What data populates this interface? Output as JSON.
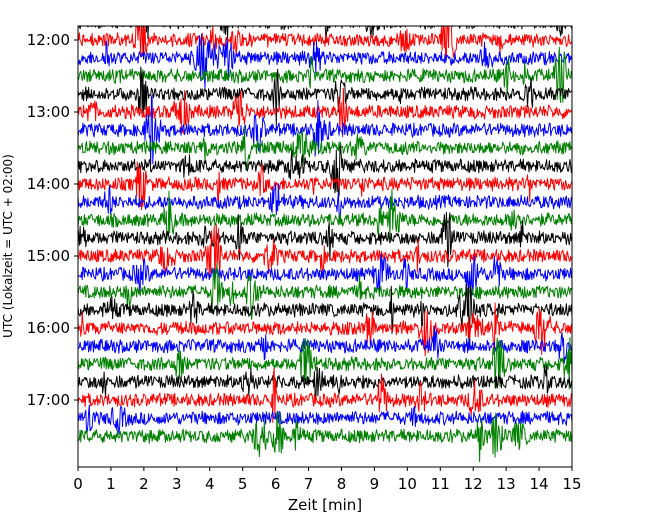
{
  "chart_data": {
    "type": "line",
    "title": "",
    "xlabel": "Zeit  [min]",
    "ylabel": "UTC (Lokalzeit = UTC + 02:00)",
    "xlim": [
      0,
      15
    ],
    "x_ticks": [
      "0",
      "1",
      "2",
      "3",
      "4",
      "5",
      "6",
      "7",
      "8",
      "9",
      "10",
      "11",
      "12",
      "13",
      "14",
      "15"
    ],
    "y_ticks": [
      "12:00",
      "13:00",
      "14:00",
      "15:00",
      "16:00",
      "17:00"
    ],
    "trace_interval_minutes": 15,
    "start_time_utc": "11:45",
    "trace_colors": [
      "#000000",
      "#ff0000",
      "#0000ff",
      "#008000"
    ],
    "traces": [
      {
        "start": "11:45",
        "color": "#000000"
      },
      {
        "start": "12:00",
        "color": "#ff0000"
      },
      {
        "start": "12:15",
        "color": "#0000ff"
      },
      {
        "start": "12:30",
        "color": "#008000"
      },
      {
        "start": "12:45",
        "color": "#000000"
      },
      {
        "start": "13:00",
        "color": "#ff0000"
      },
      {
        "start": "13:15",
        "color": "#0000ff"
      },
      {
        "start": "13:30",
        "color": "#008000"
      },
      {
        "start": "13:45",
        "color": "#000000"
      },
      {
        "start": "14:00",
        "color": "#ff0000"
      },
      {
        "start": "14:15",
        "color": "#0000ff"
      },
      {
        "start": "14:30",
        "color": "#008000"
      },
      {
        "start": "14:45",
        "color": "#000000"
      },
      {
        "start": "15:00",
        "color": "#ff0000"
      },
      {
        "start": "15:15",
        "color": "#0000ff"
      },
      {
        "start": "15:30",
        "color": "#008000"
      },
      {
        "start": "15:45",
        "color": "#000000"
      },
      {
        "start": "16:00",
        "color": "#ff0000"
      },
      {
        "start": "16:15",
        "color": "#0000ff"
      },
      {
        "start": "16:30",
        "color": "#008000"
      },
      {
        "start": "16:45",
        "color": "#000000"
      },
      {
        "start": "17:00",
        "color": "#ff0000"
      },
      {
        "start": "17:15",
        "color": "#0000ff"
      },
      {
        "start": "17:30",
        "color": "#008000"
      }
    ],
    "grid": false,
    "legend": "none"
  }
}
